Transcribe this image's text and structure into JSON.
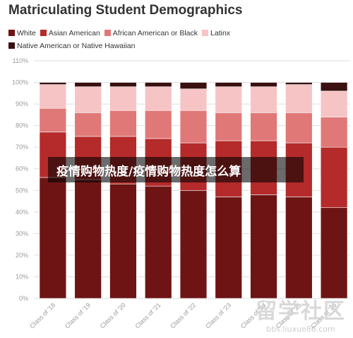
{
  "chart_data": {
    "type": "bar",
    "stacked": true,
    "title": "Matriculating Student Demographics",
    "categories": [
      "Class of '18",
      "Class of '19",
      "Class of '20",
      "Class of '21",
      "Class of '22",
      "Class of '23",
      "Class of '24",
      "Class of '25",
      "Class of '26"
    ],
    "series": [
      {
        "name": "White",
        "color": "#6e1414",
        "values": [
          56,
          55,
          53,
          52,
          50,
          47,
          48,
          47,
          42
        ]
      },
      {
        "name": "Asian American",
        "color": "#b52a2a",
        "values": [
          21,
          20,
          22,
          22,
          22,
          26,
          25,
          25,
          28
        ]
      },
      {
        "name": "African American or Black",
        "color": "#e07878",
        "values": [
          11,
          11,
          12,
          13,
          15,
          13,
          13,
          14,
          14
        ]
      },
      {
        "name": "Latinx",
        "color": "#f6c4c4",
        "values": [
          11,
          12,
          11,
          11,
          10,
          12,
          12,
          13,
          12
        ]
      },
      {
        "name": "Native American or Native Hawaiian",
        "color": "#3a1010",
        "values": [
          1,
          2,
          2,
          2,
          3,
          2,
          2,
          1,
          4
        ]
      }
    ],
    "ylim": [
      0,
      110
    ],
    "yticks": [
      0,
      10,
      20,
      30,
      40,
      50,
      60,
      70,
      80,
      90,
      100,
      110
    ],
    "ytick_labels": [
      "0%",
      "10%",
      "20%",
      "30%",
      "40%",
      "50%",
      "60%",
      "70%",
      "80%",
      "90%",
      "100%",
      "110%"
    ],
    "grid": true,
    "legend_position": "top-left"
  },
  "overlay": {
    "text": "疫情购物热度/疫情购物热度怎么算"
  },
  "watermark": {
    "main": "留学社区",
    "sub": "bbs.liuxue86.com"
  }
}
